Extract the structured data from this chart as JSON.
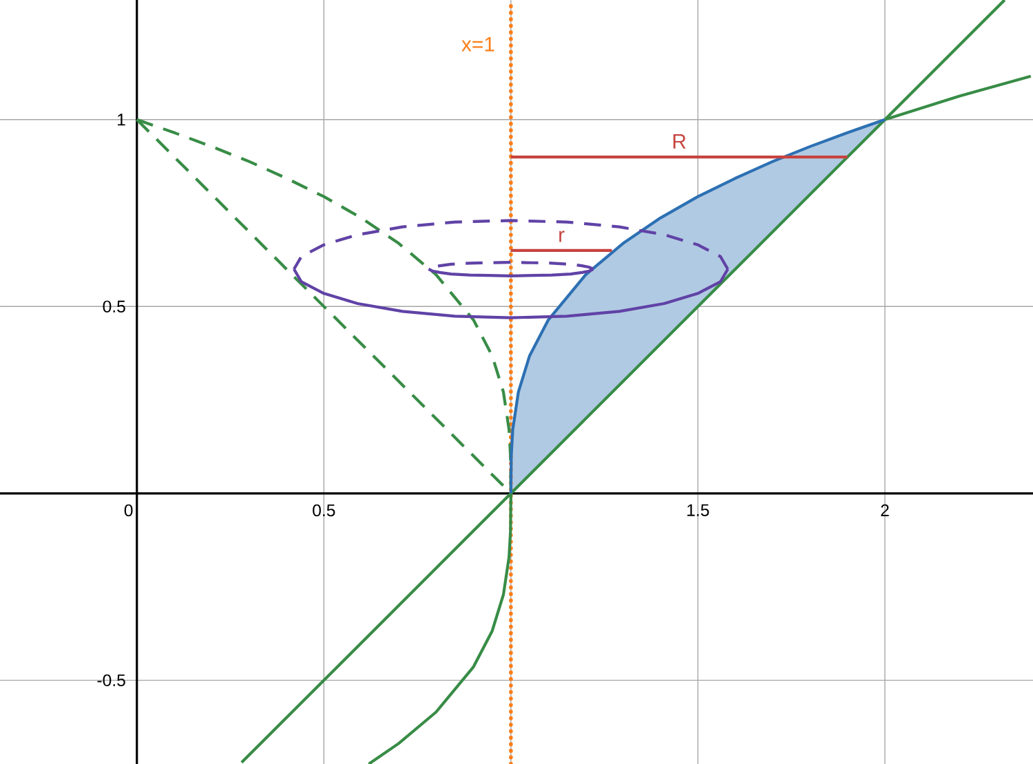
{
  "chart_data": {
    "type": "line",
    "xlim": [
      -0.366,
      2.396
    ],
    "ylim": [
      -0.724,
      1.32
    ],
    "xticks": [
      {
        "value": 0,
        "label": "0"
      },
      0.5,
      {
        "value": 1,
        "label": null
      },
      1.5,
      2
    ],
    "yticks": [
      -0.5,
      {
        "value": 0,
        "label": null
      },
      0.5,
      1
    ],
    "grid": true,
    "series": [
      {
        "color": "#388c46",
        "line_style": "solid",
        "x": [
          0.28,
          2.32
        ],
        "values": [
          -0.72,
          1.32
        ]
      },
      {
        "color": "#388c46",
        "line_style": "solid",
        "x": [
          0.62,
          0.7,
          0.8,
          0.9,
          0.95,
          0.98,
          0.995,
          0.999,
          1
        ],
        "values": [
          -0.724,
          -0.669,
          -0.585,
          -0.464,
          -0.368,
          -0.271,
          -0.171,
          -0.1,
          0
        ]
      },
      {
        "color": "#388c46",
        "line_style": "solid",
        "x": [
          2,
          2.2,
          2.39
        ],
        "values": [
          1,
          1.063,
          1.116
        ]
      },
      {
        "color": "#388c46",
        "line_style": "dashed",
        "x": [
          0,
          1
        ],
        "values": [
          1,
          0
        ]
      },
      {
        "color": "#388c46",
        "line_style": "dashed",
        "x": [
          0,
          0.1,
          0.2,
          0.3,
          0.4,
          0.5,
          0.6,
          0.7,
          0.8,
          0.9,
          0.95,
          0.98,
          0.995,
          0.999,
          1
        ],
        "values": [
          1,
          0.965,
          0.928,
          0.888,
          0.843,
          0.794,
          0.737,
          0.669,
          0.585,
          0.464,
          0.368,
          0.271,
          0.171,
          0.1,
          0
        ]
      },
      {
        "color": "#2d70b3",
        "line_style": "solid",
        "x": [
          1,
          1.001,
          1.005,
          1.02,
          1.05,
          1.1,
          1.2,
          1.3,
          1.4,
          1.5,
          1.6,
          1.7,
          1.8,
          1.9,
          2
        ],
        "values": [
          0,
          0.1,
          0.171,
          0.271,
          0.368,
          0.464,
          0.585,
          0.669,
          0.737,
          0.794,
          0.843,
          0.888,
          0.928,
          0.965,
          1
        ],
        "lower": [
          0,
          0.001,
          0.005,
          0.02,
          0.05,
          0.1,
          0.2,
          0.3,
          0.4,
          0.5,
          0.6,
          0.7,
          0.8,
          0.9,
          1
        ],
        "upper": [
          0,
          0.1,
          0.171,
          0.271,
          0.368,
          0.464,
          0.585,
          0.669,
          0.737,
          0.794,
          0.843,
          0.888,
          0.928,
          0.965,
          1
        ]
      },
      {
        "color": "#6042a6",
        "line_style": "dashed",
        "x": [
          1.58,
          1.56,
          1.5,
          1.41,
          1.29,
          1.15,
          1,
          0.85,
          0.71,
          0.59,
          0.5,
          0.44,
          0.42
        ],
        "values": [
          0.6,
          0.634,
          0.665,
          0.692,
          0.713,
          0.726,
          0.73,
          0.726,
          0.713,
          0.692,
          0.665,
          0.634,
          0.6
        ]
      },
      {
        "color": "#6042a6",
        "line_style": "solid",
        "x": [
          1.58,
          1.56,
          1.5,
          1.41,
          1.29,
          1.15,
          1,
          0.85,
          0.71,
          0.59,
          0.5,
          0.44,
          0.42
        ],
        "values": [
          0.6,
          0.566,
          0.535,
          0.508,
          0.487,
          0.474,
          0.47,
          0.474,
          0.487,
          0.508,
          0.535,
          0.566,
          0.6
        ]
      },
      {
        "color": "#6042a6",
        "line_style": "dashed",
        "x": [
          1.22,
          1.21,
          1.19,
          1.16,
          1.11,
          1.06,
          1,
          0.94,
          0.89,
          0.84,
          0.81,
          0.79,
          0.78
        ],
        "values": [
          0.6,
          0.605,
          0.609,
          0.613,
          0.616,
          0.617,
          0.618,
          0.617,
          0.616,
          0.613,
          0.609,
          0.605,
          0.6
        ]
      },
      {
        "color": "#6042a6",
        "line_style": "solid",
        "x": [
          1.22,
          1.21,
          1.19,
          1.16,
          1.11,
          1.06,
          1,
          0.94,
          0.89,
          0.84,
          0.81,
          0.79,
          0.78
        ],
        "values": [
          0.6,
          0.595,
          0.591,
          0.587,
          0.584,
          0.583,
          0.582,
          0.583,
          0.584,
          0.587,
          0.591,
          0.595,
          0.6
        ]
      },
      {
        "name": "R",
        "color": "#c74440",
        "line_style": "solid",
        "x": [
          1,
          1.9
        ],
        "values": [
          0.9,
          0.9
        ]
      },
      {
        "name": "r",
        "color": "#c74440",
        "line_style": "solid",
        "x": [
          1,
          1.27
        ],
        "values": [
          0.65,
          0.65
        ]
      }
    ],
    "ref_lines": [
      {
        "axis": "x",
        "value": 1,
        "label": "x=1",
        "color": "#fa7e19",
        "line_style": "dotted"
      }
    ]
  }
}
